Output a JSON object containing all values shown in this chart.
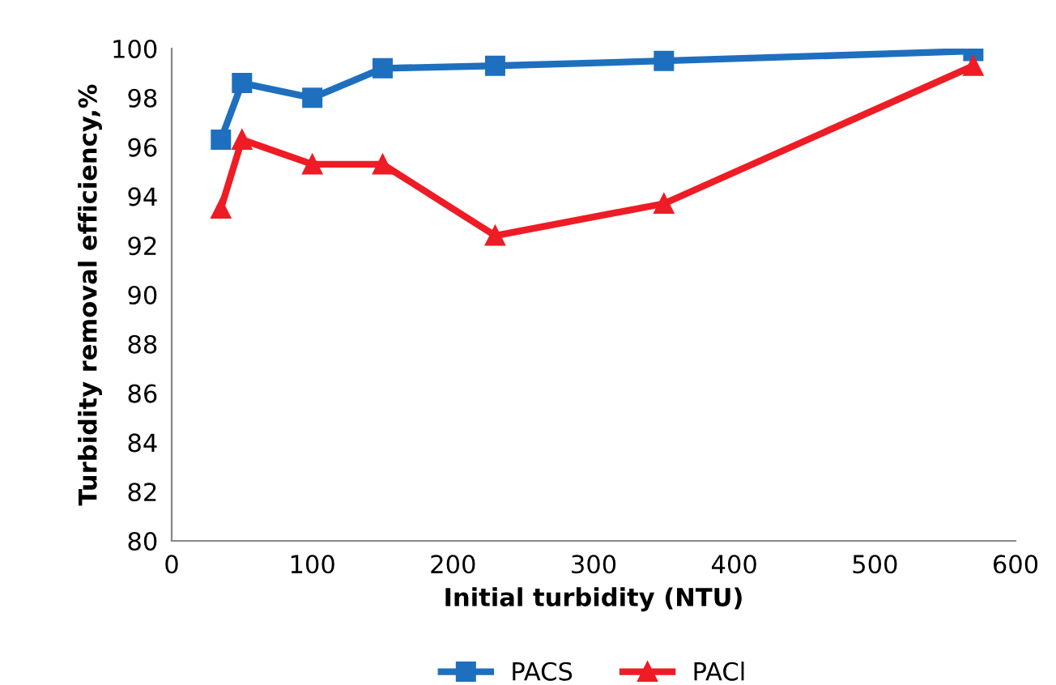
{
  "chart_data": {
    "type": "line",
    "xlabel": "Initial turbidity (NTU)",
    "ylabel": "Turbidity removal efficiency,%",
    "x": [
      35,
      50,
      100,
      150,
      230,
      350,
      570
    ],
    "series": [
      {
        "name": "PACS",
        "color": "#1f6fbf",
        "marker": "square",
        "values": [
          96.3,
          98.6,
          98.0,
          99.2,
          99.3,
          99.5,
          99.9
        ]
      },
      {
        "name": "PACl",
        "color": "#ee1c25",
        "marker": "triangle",
        "values": [
          93.5,
          96.3,
          95.3,
          95.3,
          92.4,
          93.7,
          99.3
        ]
      }
    ],
    "xlim": [
      0,
      600
    ],
    "xticks": [
      0,
      100,
      200,
      300,
      400,
      500,
      600
    ],
    "ylim": [
      80,
      100
    ],
    "yticks": [
      80,
      82,
      84,
      86,
      88,
      90,
      92,
      94,
      96,
      98,
      100
    ],
    "grid": false,
    "legend": "bottom",
    "line_style": "solid"
  }
}
